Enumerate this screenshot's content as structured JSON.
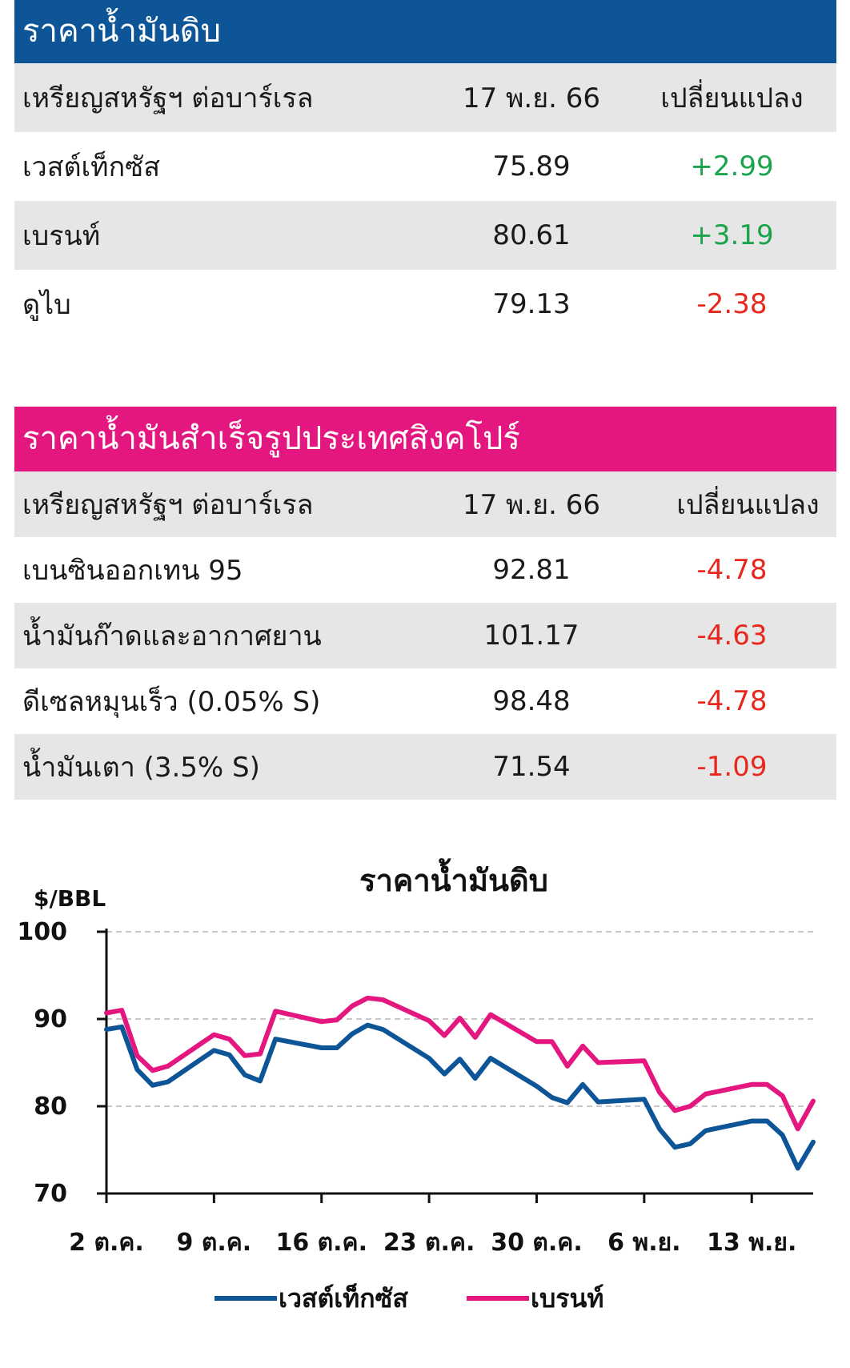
{
  "crude_table": {
    "title": "ราคาน้ำมันดิบ",
    "header": {
      "unit": "เหรียญสหรัฐฯ ต่อบาร์เรล",
      "date": "17 พ.ย. 66",
      "change": "เปลี่ยนแปลง"
    },
    "rows": [
      {
        "name": "เวสต์เท็กซัส",
        "price": "75.89",
        "change": "+2.99",
        "direction": "up"
      },
      {
        "name": "เบรนท์",
        "price": "80.61",
        "change": "+3.19",
        "direction": "up"
      },
      {
        "name": "ดูไบ",
        "price": "79.13",
        "change": "-2.38",
        "direction": "down"
      }
    ]
  },
  "refined_table": {
    "title": "ราคาน้ำมันสำเร็จรูปประเทศสิงคโปร์",
    "header": {
      "unit": "เหรียญสหรัฐฯ ต่อบาร์เรล",
      "date": "17 พ.ย. 66",
      "change": "เปลี่ยนแปลง"
    },
    "rows": [
      {
        "name": "เบนซินออกเทน 95",
        "price": "92.81",
        "change": "-4.78",
        "direction": "down"
      },
      {
        "name": "น้ำมันก๊าดและอากาศยาน",
        "price": "101.17",
        "change": "-4.63",
        "direction": "down"
      },
      {
        "name": "ดีเซลหมุนเร็ว (0.05% S)",
        "price": "98.48",
        "change": "-4.78",
        "direction": "down"
      },
      {
        "name": "น้ำมันเตา (3.5% S)",
        "price": "71.54",
        "change": "-1.09",
        "direction": "down"
      }
    ]
  },
  "colors": {
    "blue": "#0e5597",
    "pink": "#e3177f",
    "up": "#1aa34a",
    "down": "#e8281e"
  },
  "chart_data": {
    "type": "line",
    "title": "ราคาน้ำมันดิบ",
    "ylabel": "$/BBL",
    "ylim": [
      70,
      100
    ],
    "yticks": [
      70,
      80,
      90,
      100
    ],
    "xticks": [
      "2 ต.ค.",
      "9 ต.ค.",
      "16 ต.ค.",
      "23 ต.ค.",
      "30 ต.ค.",
      "6 พ.ย.",
      "13 พ.ย."
    ],
    "grid": true,
    "legend_position": "bottom",
    "x": [
      "2023-10-02",
      "2023-10-03",
      "2023-10-04",
      "2023-10-05",
      "2023-10-06",
      "2023-10-09",
      "2023-10-10",
      "2023-10-11",
      "2023-10-12",
      "2023-10-13",
      "2023-10-16",
      "2023-10-17",
      "2023-10-18",
      "2023-10-19",
      "2023-10-20",
      "2023-10-23",
      "2023-10-24",
      "2023-10-25",
      "2023-10-26",
      "2023-10-27",
      "2023-10-30",
      "2023-10-31",
      "2023-11-01",
      "2023-11-02",
      "2023-11-03",
      "2023-11-06",
      "2023-11-07",
      "2023-11-08",
      "2023-11-09",
      "2023-11-10",
      "2023-11-13",
      "2023-11-14",
      "2023-11-15",
      "2023-11-16",
      "2023-11-17"
    ],
    "series": [
      {
        "name": "เวสต์เท็กซัส",
        "color": "#0e5597",
        "values": [
          88.8,
          89.1,
          84.2,
          82.4,
          82.8,
          86.4,
          85.9,
          83.6,
          82.9,
          87.7,
          86.7,
          86.7,
          88.3,
          89.3,
          88.8,
          85.5,
          83.7,
          85.4,
          83.2,
          85.5,
          82.3,
          81.0,
          80.4,
          82.5,
          80.5,
          80.8,
          77.4,
          75.3,
          75.7,
          77.2,
          78.3,
          78.3,
          76.7,
          72.9,
          75.9
        ]
      },
      {
        "name": "เบรนท์",
        "color": "#e3177f",
        "values": [
          90.7,
          91.0,
          85.8,
          84.1,
          84.6,
          88.2,
          87.7,
          85.8,
          86.0,
          90.9,
          89.7,
          89.9,
          91.5,
          92.4,
          92.2,
          89.8,
          88.1,
          90.1,
          87.9,
          90.5,
          87.4,
          87.4,
          84.6,
          86.9,
          85.0,
          85.2,
          81.6,
          79.5,
          80.0,
          81.4,
          82.5,
          82.5,
          81.2,
          77.4,
          80.6
        ]
      }
    ]
  }
}
